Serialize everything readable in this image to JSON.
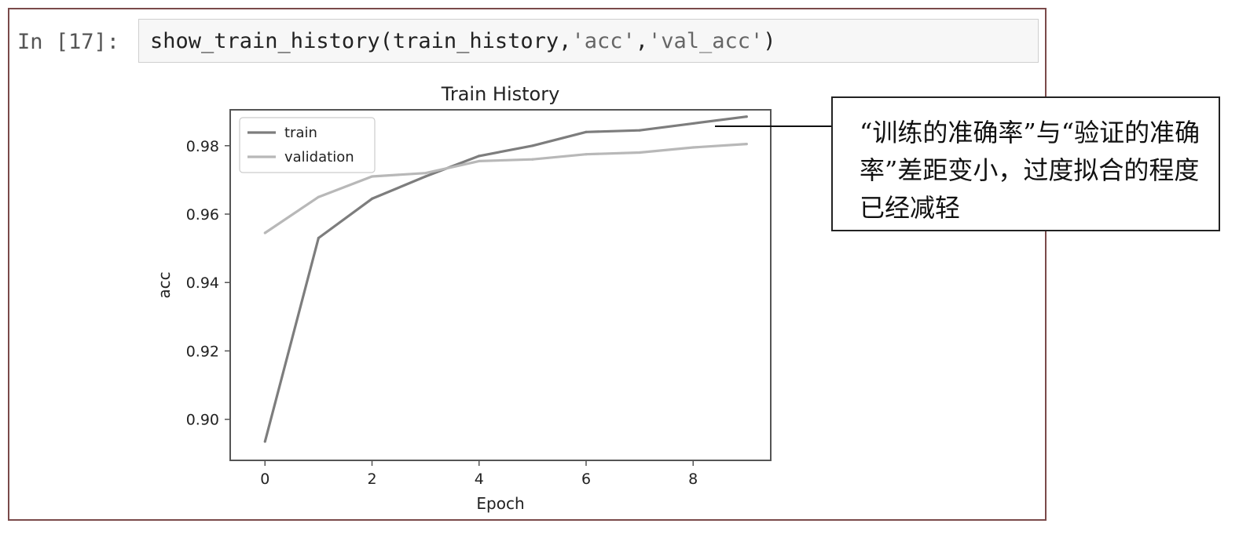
{
  "cell": {
    "prompt": "In [17]:",
    "code_fn": "show_train_history(train_history,",
    "code_arg1": "'acc'",
    "code_sep": ",",
    "code_arg2": "'val_acc'",
    "code_close": ")"
  },
  "annotation": {
    "text": "“训练的准确率”与“验证的准确率”差距变小，过度拟合的程度已经减轻"
  },
  "colors": {
    "train_line": "#7d7d7d",
    "validation_line": "#b8b8b8",
    "axes": "#555555"
  },
  "chart_data": {
    "type": "line",
    "title": "Train History",
    "xlabel": "Epoch",
    "ylabel": "acc",
    "x": [
      0,
      1,
      2,
      3,
      4,
      5,
      6,
      7,
      8,
      9
    ],
    "xlim": [
      -0.65,
      9.45
    ],
    "ylim": [
      0.888,
      0.9905
    ],
    "xticks": [
      0,
      2,
      4,
      6,
      8
    ],
    "xtick_labels": [
      "0",
      "2",
      "4",
      "6",
      "8"
    ],
    "yticks": [
      0.9,
      0.92,
      0.94,
      0.96,
      0.98
    ],
    "ytick_labels": [
      "0.90",
      "0.92",
      "0.94",
      "0.96",
      "0.98"
    ],
    "grid": false,
    "legend": "upper-left",
    "series": [
      {
        "name": "train",
        "values": [
          0.8935,
          0.953,
          0.9645,
          0.971,
          0.977,
          0.98,
          0.984,
          0.9845,
          0.9865,
          0.9885
        ]
      },
      {
        "name": "validation",
        "values": [
          0.9545,
          0.965,
          0.971,
          0.972,
          0.9755,
          0.976,
          0.9775,
          0.978,
          0.9795,
          0.9805
        ]
      }
    ]
  }
}
